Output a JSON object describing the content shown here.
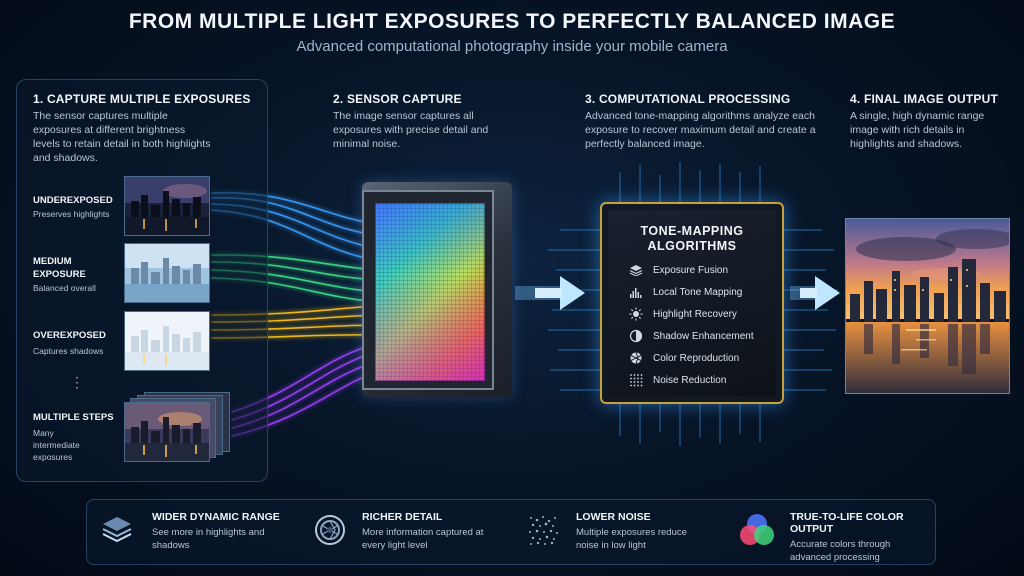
{
  "header": {
    "title": "FROM MULTIPLE LIGHT EXPOSURES TO PERFECTLY BALANCED IMAGE",
    "subtitle": "Advanced computational photography inside your mobile camera"
  },
  "steps": [
    {
      "heading": "1. CAPTURE MULTIPLE EXPOSURES",
      "description": "The sensor captures multiple exposures at different brightness levels to retain detail in both highlights and shadows."
    },
    {
      "heading": "2. SENSOR CAPTURE",
      "description": "The image sensor captures all exposures with precise detail and minimal noise."
    },
    {
      "heading": "3. COMPUTATIONAL PROCESSING",
      "description": "Advanced tone-mapping algorithms analyze each exposure to recover maximum detail and create a perfectly balanced image."
    },
    {
      "heading": "4. FINAL IMAGE OUTPUT",
      "description": "A single, high dynamic range image with rich details in highlights and shadows."
    }
  ],
  "exposures": [
    {
      "label": "UNDEREXPOSED",
      "sub": "Preserves highlights"
    },
    {
      "label": "MEDIUM EXPOSURE",
      "sub": "Balanced overall"
    },
    {
      "label": "OVEREXPOSED",
      "sub": "Captures shadows"
    },
    {
      "label": "MULTIPLE STEPS",
      "sub": "Many intermediate exposures"
    }
  ],
  "ellipsis": "⋮",
  "chip": {
    "title": "TONE-MAPPING ALGORITHMS",
    "algorithms": [
      {
        "label": "Exposure Fusion",
        "icon": "layers-icon"
      },
      {
        "label": "Local Tone Mapping",
        "icon": "histogram-icon"
      },
      {
        "label": "Highlight Recovery",
        "icon": "sun-icon"
      },
      {
        "label": "Shadow Enhancement",
        "icon": "half-circle-icon"
      },
      {
        "label": "Color Reproduction",
        "icon": "aperture-icon"
      },
      {
        "label": "Noise Reduction",
        "icon": "dots-grid-icon"
      }
    ]
  },
  "benefits": [
    {
      "heading": "WIDER DYNAMIC RANGE",
      "description": "See more in highlights and shadows",
      "icon": "layers-icon"
    },
    {
      "heading": "RICHER DETAIL",
      "description": "More information captured at every light level",
      "icon": "lens-icon"
    },
    {
      "heading": "LOWER NOISE",
      "description": "Multiple exposures reduce noise in low light",
      "icon": "noise-icon"
    },
    {
      "heading": "TRUE-TO-LIFE COLOR OUTPUT",
      "description": "Accurate colors through advanced processing",
      "icon": "rgb-circles-icon"
    }
  ],
  "colors": {
    "background": "#071528",
    "chip_border": "#c9a13a",
    "arrow": "#7ec8ff",
    "ray_underexposed": "#3aa0ff",
    "ray_medium": "#3ee08a",
    "ray_overexposed": "#ffc21a",
    "ray_multiple": "#a040ff"
  }
}
